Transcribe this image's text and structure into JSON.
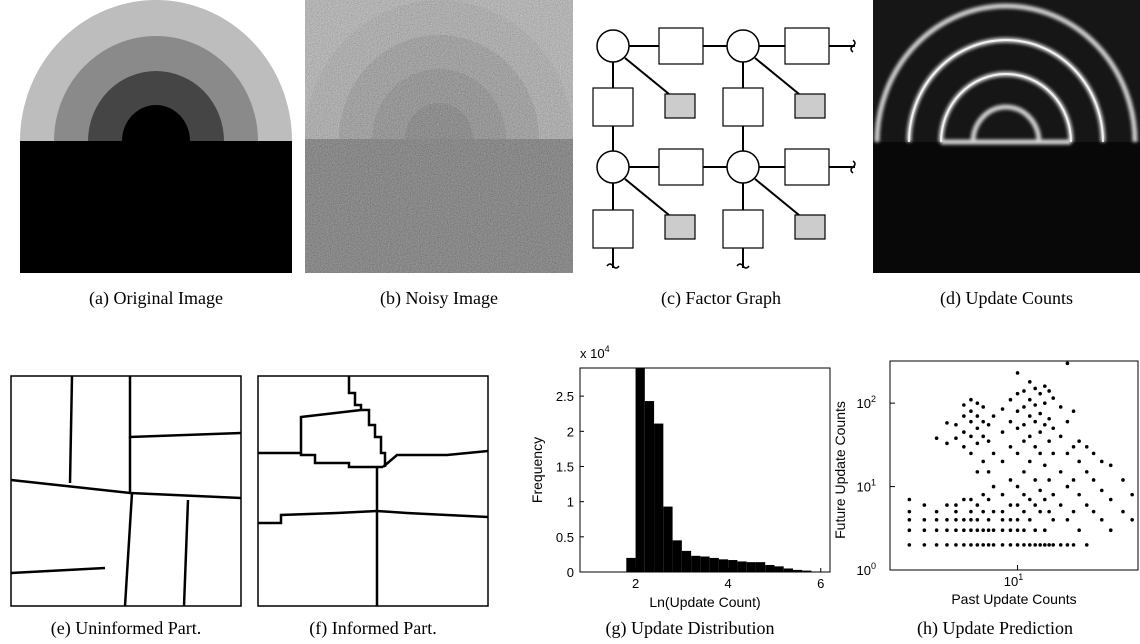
{
  "captions": {
    "a": "(a) Original Image",
    "b": "(b) Noisy Image",
    "c": "(c) Factor Graph",
    "d": "(d) Update Counts",
    "e": "(e) Uninformed Part.",
    "f": "(f) Informed Part.",
    "g": "(g) Update Distribution",
    "h": "(h) Update Prediction"
  },
  "chart_data": [
    {
      "type": "bar",
      "xlabel": "Ln(Update Count)",
      "ylabel": "Frequency",
      "multiplier_text": "x 10",
      "multiplier_exp": "4",
      "xlim": [
        0.8,
        6.2
      ],
      "ylim": [
        0,
        2.9
      ],
      "xticks": [
        "2",
        "4",
        "6"
      ],
      "yticks": [
        "0",
        "0.5",
        "1",
        "1.5",
        "2",
        "2.5"
      ],
      "bin_width": 0.2,
      "bin_starts": [
        1.8,
        2.0,
        2.2,
        2.4,
        2.6,
        2.8,
        3.0,
        3.2,
        3.4,
        3.6,
        3.8,
        4.0,
        4.2,
        4.4,
        4.6,
        4.8,
        5.0,
        5.2,
        5.4,
        5.6
      ],
      "values": [
        0.2,
        2.95,
        2.43,
        2.11,
        0.93,
        0.45,
        0.3,
        0.23,
        0.22,
        0.2,
        0.18,
        0.17,
        0.15,
        0.14,
        0.14,
        0.1,
        0.08,
        0.05,
        0.03,
        0.02
      ]
    },
    {
      "type": "scatter",
      "xlabel": "Past Update Counts",
      "ylabel": "Future Update Counts",
      "xscale": "log",
      "yscale": "log",
      "xlim": [
        1.5,
        60
      ],
      "ylim": [
        1,
        320
      ],
      "xticks": [
        {
          "base": "10",
          "exp": "1",
          "value": 10
        }
      ],
      "yticks": [
        {
          "base": "10",
          "exp": "0",
          "value": 1
        },
        {
          "base": "10",
          "exp": "1",
          "value": 10
        },
        {
          "base": "10",
          "exp": "2",
          "value": 100
        }
      ],
      "points": [
        [
          2,
          7
        ],
        [
          2,
          5
        ],
        [
          2,
          4
        ],
        [
          2,
          3
        ],
        [
          2,
          2
        ],
        [
          2.5,
          6
        ],
        [
          2.5,
          4
        ],
        [
          2.5,
          3
        ],
        [
          2.5,
          2
        ],
        [
          3,
          38
        ],
        [
          3,
          5
        ],
        [
          3,
          4
        ],
        [
          3,
          3
        ],
        [
          3,
          2
        ],
        [
          3.5,
          58
        ],
        [
          3.5,
          33
        ],
        [
          3.5,
          6
        ],
        [
          3.5,
          4
        ],
        [
          3.5,
          3
        ],
        [
          3.5,
          2
        ],
        [
          4,
          55
        ],
        [
          4,
          38
        ],
        [
          4,
          6
        ],
        [
          4,
          5
        ],
        [
          4,
          4
        ],
        [
          4,
          3
        ],
        [
          4,
          2
        ],
        [
          4.5,
          95
        ],
        [
          4.5,
          70
        ],
        [
          4.5,
          45
        ],
        [
          4.5,
          30
        ],
        [
          4.5,
          7
        ],
        [
          4.5,
          4
        ],
        [
          4.5,
          3
        ],
        [
          4.5,
          2
        ],
        [
          5,
          110
        ],
        [
          5,
          80
        ],
        [
          5,
          60
        ],
        [
          5,
          40
        ],
        [
          5,
          25
        ],
        [
          5,
          7
        ],
        [
          5,
          5
        ],
        [
          5,
          4
        ],
        [
          5,
          3
        ],
        [
          5,
          2
        ],
        [
          5.5,
          100
        ],
        [
          5.5,
          70
        ],
        [
          5.5,
          50
        ],
        [
          5.5,
          33
        ],
        [
          5.5,
          15
        ],
        [
          5.5,
          6
        ],
        [
          5.5,
          4
        ],
        [
          5.5,
          3
        ],
        [
          5.5,
          2
        ],
        [
          6,
          90
        ],
        [
          6,
          60
        ],
        [
          6,
          40
        ],
        [
          6,
          20
        ],
        [
          6,
          8
        ],
        [
          6,
          5
        ],
        [
          6,
          3
        ],
        [
          6,
          2
        ],
        [
          6.5,
          55
        ],
        [
          6.5,
          35
        ],
        [
          6.5,
          15
        ],
        [
          6.5,
          7
        ],
        [
          6.5,
          4
        ],
        [
          6.5,
          3
        ],
        [
          6.5,
          2
        ],
        [
          7,
          70
        ],
        [
          7,
          25
        ],
        [
          7,
          10
        ],
        [
          7,
          5
        ],
        [
          7,
          3
        ],
        [
          7,
          2
        ],
        [
          8,
          85
        ],
        [
          8,
          45
        ],
        [
          8,
          20
        ],
        [
          8,
          8
        ],
        [
          8,
          5
        ],
        [
          8,
          4
        ],
        [
          8,
          3
        ],
        [
          8,
          2
        ],
        [
          9,
          110
        ],
        [
          9,
          60
        ],
        [
          9,
          30
        ],
        [
          9,
          12
        ],
        [
          9,
          6
        ],
        [
          9,
          4
        ],
        [
          9,
          3
        ],
        [
          9,
          2
        ],
        [
          10,
          230
        ],
        [
          10,
          130
        ],
        [
          10,
          80
        ],
        [
          10,
          50
        ],
        [
          10,
          25
        ],
        [
          10,
          10
        ],
        [
          10,
          6
        ],
        [
          10,
          4
        ],
        [
          10,
          3
        ],
        [
          10,
          2
        ],
        [
          11,
          140
        ],
        [
          11,
          90
        ],
        [
          11,
          55
        ],
        [
          11,
          35
        ],
        [
          11,
          15
        ],
        [
          11,
          8
        ],
        [
          11,
          5
        ],
        [
          11,
          3
        ],
        [
          11,
          2
        ],
        [
          12,
          180
        ],
        [
          12,
          110
        ],
        [
          12,
          70
        ],
        [
          12,
          40
        ],
        [
          12,
          20
        ],
        [
          12,
          7
        ],
        [
          12,
          4
        ],
        [
          12,
          2
        ],
        [
          13,
          150
        ],
        [
          13,
          95
        ],
        [
          13,
          60
        ],
        [
          13,
          30
        ],
        [
          13,
          12
        ],
        [
          13,
          6
        ],
        [
          13,
          3
        ],
        [
          13,
          2
        ],
        [
          14,
          130
        ],
        [
          14,
          75
        ],
        [
          14,
          45
        ],
        [
          14,
          25
        ],
        [
          14,
          9
        ],
        [
          14,
          5
        ],
        [
          14,
          2
        ],
        [
          15,
          160
        ],
        [
          15,
          100
        ],
        [
          15,
          55
        ],
        [
          15,
          18
        ],
        [
          15,
          7
        ],
        [
          15,
          3
        ],
        [
          15,
          2
        ],
        [
          16,
          140
        ],
        [
          16,
          65
        ],
        [
          16,
          35
        ],
        [
          16,
          12
        ],
        [
          16,
          5
        ],
        [
          16,
          2
        ],
        [
          17,
          115
        ],
        [
          17,
          50
        ],
        [
          17,
          25
        ],
        [
          17,
          8
        ],
        [
          17,
          4
        ],
        [
          17,
          2
        ],
        [
          19,
          90
        ],
        [
          19,
          40
        ],
        [
          19,
          15
        ],
        [
          19,
          6
        ],
        [
          19,
          2
        ],
        [
          21,
          300
        ],
        [
          21,
          60
        ],
        [
          21,
          25
        ],
        [
          21,
          10
        ],
        [
          21,
          4
        ],
        [
          21,
          2
        ],
        [
          23,
          80
        ],
        [
          23,
          30
        ],
        [
          23,
          12
        ],
        [
          23,
          5
        ],
        [
          23,
          2
        ],
        [
          25,
          35
        ],
        [
          25,
          20
        ],
        [
          25,
          8
        ],
        [
          25,
          3
        ],
        [
          28,
          30
        ],
        [
          28,
          15
        ],
        [
          28,
          6
        ],
        [
          28,
          2
        ],
        [
          31,
          25
        ],
        [
          31,
          12
        ],
        [
          31,
          5
        ],
        [
          35,
          20
        ],
        [
          35,
          9
        ],
        [
          35,
          4
        ],
        [
          40,
          18
        ],
        [
          40,
          7
        ],
        [
          40,
          3
        ],
        [
          48,
          12
        ],
        [
          48,
          5
        ],
        [
          55,
          8
        ],
        [
          55,
          4
        ]
      ]
    }
  ]
}
